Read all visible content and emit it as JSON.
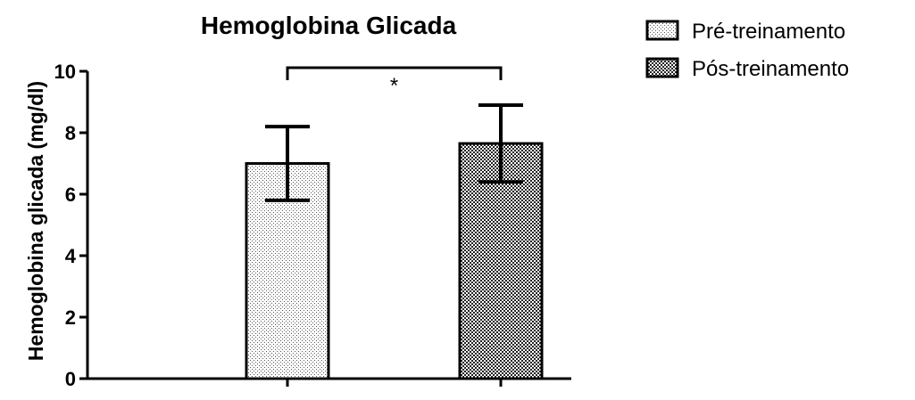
{
  "chart_data": {
    "type": "bar",
    "title": "Hemoglobina Glicada",
    "xlabel": "",
    "ylabel": "Hemoglobina glicada (mg/dl)",
    "ylim": [
      0,
      10
    ],
    "yticks": [
      0,
      2,
      4,
      6,
      8,
      10
    ],
    "grid": false,
    "legend_position": "top-right",
    "series": [
      {
        "name": "Pré-treinamento",
        "value": 7.0,
        "error": 1.2,
        "pattern": "fine-dots",
        "pattern_color": "#555555"
      },
      {
        "name": "Pós-treinamento",
        "value": 7.65,
        "error": 1.25,
        "pattern": "checkered",
        "pattern_color": "#222222"
      }
    ],
    "annotations": [
      {
        "text": "*",
        "between": [
          0,
          1
        ]
      }
    ],
    "colors": {
      "stroke": "#000000",
      "background": "#ffffff"
    }
  }
}
